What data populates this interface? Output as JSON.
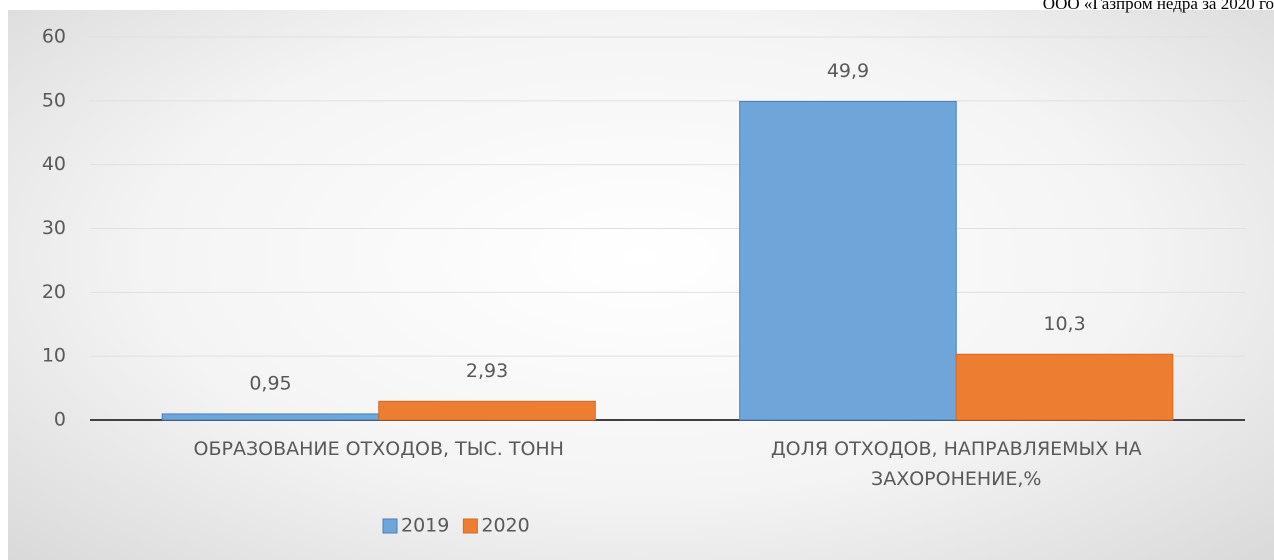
{
  "chart_data": {
    "type": "bar",
    "annotation": "ООО «Газпром недра за 2020 го",
    "categories": [
      "ОБРАЗОВАНИЕ ОТХОДОВ, ТЫС. ТОНН",
      "ДОЛЯ ОТХОДОВ, НАПРАВЛЯЕМЫХ НА ЗАХОРОНЕНИЕ,%"
    ],
    "series": [
      {
        "name": "2019",
        "color": "#6fa6da",
        "values": [
          0.95,
          49.9
        ],
        "value_labels": [
          "0,95",
          "49,9"
        ]
      },
      {
        "name": "2020",
        "color": "#ed7d31",
        "values": [
          2.93,
          10.3
        ],
        "value_labels": [
          "2,93",
          "10,3"
        ]
      }
    ],
    "ylim": [
      0,
      60
    ],
    "yticks": [
      0,
      10,
      20,
      30,
      40,
      50,
      60
    ],
    "grid": true,
    "legend": "bottom"
  }
}
